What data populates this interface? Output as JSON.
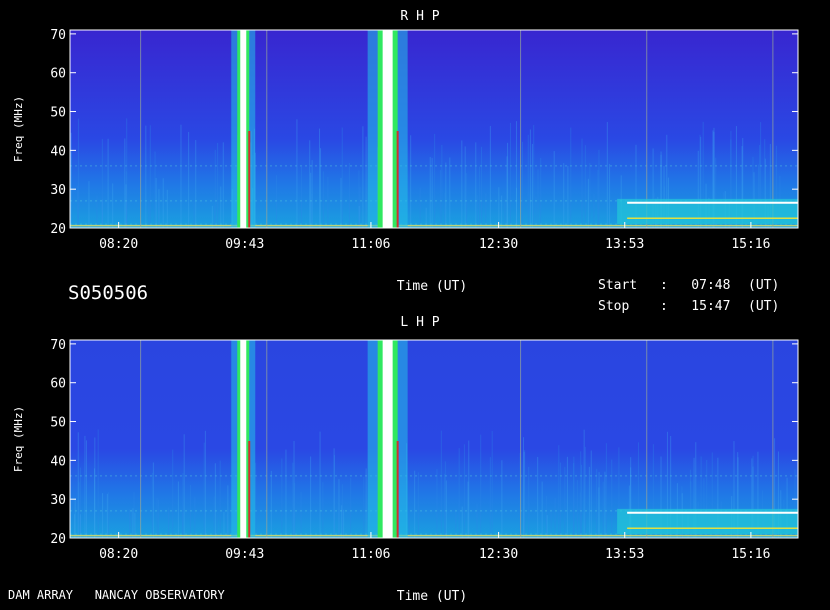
{
  "station": "DAM ARRAY   NANCAY OBSERVATORY",
  "date_code": "S050506",
  "start_label": "Start",
  "stop_label": "Stop",
  "start_value": ":   07:48",
  "stop_value": ":   15:47",
  "unit": "(UT)",
  "colors": {
    "background": "#000000",
    "base": "#2f3ad6",
    "lowband": "#1e8be0",
    "grid": "#9aa39a",
    "hline": "#58e0a0"
  },
  "chart_data": [
    {
      "type": "heatmap",
      "title": "R H P",
      "xlabel": "Time (UT)",
      "ylabel": "Freq (MHz)",
      "x_ticks": [
        "08:20",
        "09:43",
        "11:06",
        "12:30",
        "13:53",
        "15:16"
      ],
      "y_ticks": [
        20,
        30,
        40,
        50,
        60,
        70
      ],
      "ylim": [
        20,
        71
      ],
      "xlim": [
        "07:48",
        "15:47"
      ],
      "bursts": [
        {
          "time": "09:42",
          "fmin": 20,
          "fmax": 71,
          "intensity": "high"
        },
        {
          "time": "11:17",
          "fmin": 20,
          "fmax": 71,
          "intensity": "saturated"
        },
        {
          "time": "14:30",
          "fmin": 21,
          "fmax": 27,
          "intensity": "high"
        }
      ]
    },
    {
      "type": "heatmap",
      "title": "L H P",
      "xlabel": "Time (UT)",
      "ylabel": "Freq (MHz)",
      "x_ticks": [
        "08:20",
        "09:43",
        "11:06",
        "12:30",
        "13:53",
        "15:16"
      ],
      "y_ticks": [
        20,
        30,
        40,
        50,
        60,
        70
      ],
      "ylim": [
        20,
        71
      ],
      "xlim": [
        "07:48",
        "15:47"
      ],
      "bursts": [
        {
          "time": "09:42",
          "fmin": 20,
          "fmax": 71,
          "intensity": "high"
        },
        {
          "time": "11:17",
          "fmin": 20,
          "fmax": 71,
          "intensity": "saturated"
        },
        {
          "time": "14:30",
          "fmin": 21,
          "fmax": 27,
          "intensity": "high"
        }
      ]
    }
  ]
}
